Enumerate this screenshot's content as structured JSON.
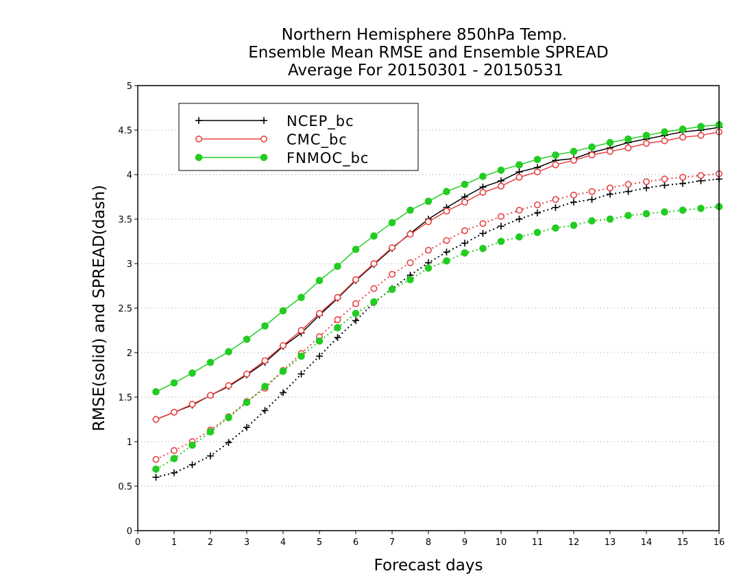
{
  "chart_data": {
    "type": "line",
    "title": [
      "Northern Hemisphere 850hPa Temp.",
      "Ensemble Mean RMSE and Ensemble SPREAD",
      "Average For 20150301 - 20150531"
    ],
    "xlabel": "Forecast days",
    "ylabel": "RMSE(solid) and SPREAD(dash)",
    "xlim": [
      0,
      16
    ],
    "ylim": [
      0,
      5
    ],
    "xticks": [
      "0",
      "1",
      "2",
      "3",
      "4",
      "5",
      "6",
      "7",
      "8",
      "9",
      "10",
      "11",
      "12",
      "13",
      "14",
      "15",
      "16"
    ],
    "yticks": [
      "0",
      "0.5",
      "1",
      "1.5",
      "2",
      "2.5",
      "3",
      "3.5",
      "4",
      "4.5",
      "5"
    ],
    "grid": true,
    "legend_position": "top-left",
    "x": [
      0.5,
      1,
      1.5,
      2,
      2.5,
      3,
      3.5,
      4,
      4.5,
      5,
      5.5,
      6,
      6.5,
      7,
      7.5,
      8,
      8.5,
      9,
      9.5,
      10,
      10.5,
      11,
      11.5,
      12,
      12.5,
      13,
      13.5,
      14,
      14.5,
      15,
      15.5,
      16
    ],
    "series": [
      {
        "name": "NCEP_bc",
        "color": "#000000",
        "marker": "plus",
        "rmse": [
          1.25,
          1.33,
          1.41,
          1.52,
          1.62,
          1.75,
          1.89,
          2.07,
          2.22,
          2.42,
          2.61,
          2.81,
          2.99,
          3.17,
          3.34,
          3.5,
          3.63,
          3.75,
          3.86,
          3.93,
          4.03,
          4.08,
          4.16,
          4.18,
          4.25,
          4.3,
          4.36,
          4.4,
          4.44,
          4.48,
          4.5,
          4.53
        ],
        "spread": [
          0.6,
          0.65,
          0.74,
          0.84,
          0.99,
          1.16,
          1.35,
          1.55,
          1.76,
          1.96,
          2.17,
          2.36,
          2.56,
          2.72,
          2.87,
          3.01,
          3.13,
          3.23,
          3.34,
          3.42,
          3.5,
          3.57,
          3.63,
          3.69,
          3.72,
          3.78,
          3.81,
          3.85,
          3.88,
          3.9,
          3.93,
          3.95
        ]
      },
      {
        "name": "CMC_bc",
        "color": "#e84040",
        "marker": "open-circle",
        "rmse": [
          1.25,
          1.33,
          1.42,
          1.52,
          1.63,
          1.76,
          1.91,
          2.08,
          2.25,
          2.44,
          2.62,
          2.82,
          3.0,
          3.18,
          3.33,
          3.47,
          3.59,
          3.69,
          3.8,
          3.87,
          3.97,
          4.03,
          4.11,
          4.16,
          4.22,
          4.26,
          4.3,
          4.35,
          4.38,
          4.42,
          4.44,
          4.48
        ],
        "spread": [
          0.8,
          0.9,
          1.0,
          1.13,
          1.28,
          1.45,
          1.6,
          1.8,
          1.99,
          2.18,
          2.37,
          2.55,
          2.72,
          2.88,
          3.01,
          3.15,
          3.26,
          3.37,
          3.45,
          3.53,
          3.6,
          3.66,
          3.72,
          3.77,
          3.81,
          3.85,
          3.89,
          3.92,
          3.95,
          3.97,
          3.99,
          4.01
        ]
      },
      {
        "name": "FNMOC_bc",
        "color": "#22cc22",
        "marker": "filled-circle",
        "rmse": [
          1.56,
          1.66,
          1.77,
          1.89,
          2.01,
          2.15,
          2.3,
          2.47,
          2.62,
          2.81,
          2.97,
          3.16,
          3.31,
          3.46,
          3.6,
          3.7,
          3.81,
          3.89,
          3.98,
          4.05,
          4.11,
          4.17,
          4.22,
          4.26,
          4.31,
          4.36,
          4.4,
          4.44,
          4.48,
          4.51,
          4.54,
          4.56
        ],
        "spread": [
          0.69,
          0.81,
          0.96,
          1.11,
          1.27,
          1.44,
          1.62,
          1.79,
          1.96,
          2.13,
          2.28,
          2.44,
          2.57,
          2.71,
          2.82,
          2.95,
          3.03,
          3.12,
          3.17,
          3.25,
          3.3,
          3.35,
          3.4,
          3.43,
          3.48,
          3.5,
          3.54,
          3.56,
          3.58,
          3.6,
          3.62,
          3.64
        ]
      }
    ]
  }
}
